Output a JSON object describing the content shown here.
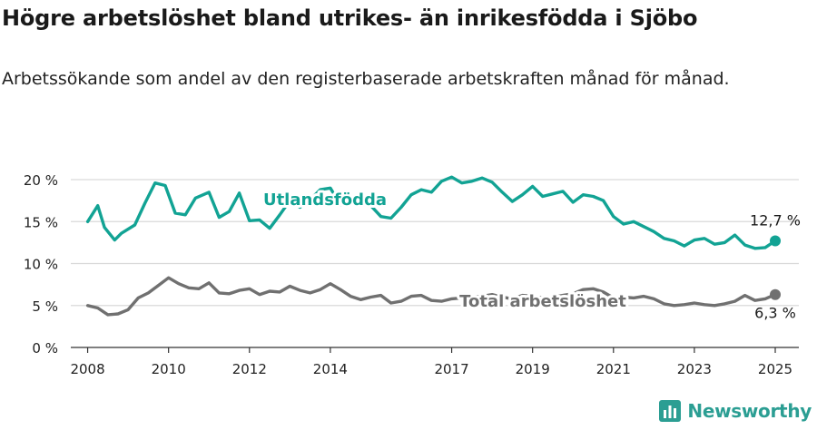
{
  "title": "Högre arbetslöshet bland utrikes- än inrikesfödda i Sjöbo",
  "subtitle": "Arbetssökande som andel av den registerbaserade arbetskraften månad för månad.",
  "brand": "Newsworthy",
  "colors": {
    "foreign": "#12a394",
    "total": "#707070",
    "grid": "#d9d9d9",
    "axis": "#333333"
  },
  "chart_data": {
    "type": "line",
    "x_ticks": [
      "2008",
      "2010",
      "2012",
      "2014",
      "2017",
      "2019",
      "2021",
      "2023",
      "2025"
    ],
    "y_ticks": [
      "0 %",
      "5 %",
      "10 %",
      "15 %",
      "20 %"
    ],
    "ylim": [
      0,
      20
    ],
    "xlim": [
      "2007-08",
      "2025-08"
    ],
    "end_labels": {
      "foreign": "12,7 %",
      "total": "6,3 %"
    },
    "series": [
      {
        "name": "Utlandsfödda",
        "x": [
          "2008-01",
          "2008-04",
          "2008-06",
          "2008-09",
          "2008-11",
          "2009-03",
          "2009-06",
          "2009-09",
          "2009-12",
          "2010-03",
          "2010-06",
          "2010-09",
          "2011-01",
          "2011-04",
          "2011-07",
          "2011-10",
          "2012-01",
          "2012-04",
          "2012-07",
          "2012-10",
          "2013-01",
          "2013-04",
          "2013-07",
          "2013-10",
          "2014-01",
          "2014-04",
          "2014-07",
          "2014-10",
          "2015-01",
          "2015-04",
          "2015-07",
          "2015-10",
          "2016-01",
          "2016-04",
          "2016-07",
          "2016-10",
          "2017-01",
          "2017-04",
          "2017-07",
          "2017-10",
          "2018-01",
          "2018-04",
          "2018-07",
          "2018-10",
          "2019-01",
          "2019-04",
          "2019-07",
          "2019-10",
          "2020-01",
          "2020-04",
          "2020-07",
          "2020-10",
          "2021-01",
          "2021-04",
          "2021-07",
          "2021-10",
          "2022-01",
          "2022-04",
          "2022-07",
          "2022-10",
          "2023-01",
          "2023-04",
          "2023-07",
          "2023-10",
          "2024-01",
          "2024-04",
          "2024-07",
          "2024-10",
          "2025-01"
        ],
        "values": [
          15.0,
          16.9,
          14.3,
          12.8,
          13.6,
          14.6,
          17.2,
          19.6,
          19.3,
          16.0,
          15.8,
          17.8,
          18.5,
          15.5,
          16.2,
          18.4,
          15.1,
          15.2,
          14.2,
          15.8,
          17.5,
          16.7,
          17.6,
          18.8,
          19.0,
          17.0,
          17.4,
          17.0,
          16.9,
          15.6,
          15.4,
          16.7,
          18.2,
          18.8,
          18.5,
          19.8,
          20.3,
          19.6,
          19.8,
          20.2,
          19.7,
          18.5,
          17.4,
          18.2,
          19.2,
          18.0,
          18.3,
          18.6,
          17.3,
          18.2,
          18.0,
          17.5,
          15.6,
          14.7,
          15.0,
          14.4,
          13.8,
          13.0,
          12.7,
          12.1,
          12.8,
          13.0,
          12.3,
          12.5,
          13.4,
          12.2,
          11.8,
          11.9,
          12.7
        ]
      },
      {
        "name": "Total arbetslöshet",
        "x": [
          "2008-01",
          "2008-04",
          "2008-07",
          "2008-10",
          "2009-01",
          "2009-04",
          "2009-07",
          "2009-10",
          "2010-01",
          "2010-04",
          "2010-07",
          "2010-10",
          "2011-01",
          "2011-04",
          "2011-07",
          "2011-10",
          "2012-01",
          "2012-04",
          "2012-07",
          "2012-10",
          "2013-01",
          "2013-04",
          "2013-07",
          "2013-10",
          "2014-01",
          "2014-04",
          "2014-07",
          "2014-10",
          "2015-01",
          "2015-04",
          "2015-07",
          "2015-10",
          "2016-01",
          "2016-04",
          "2016-07",
          "2016-10",
          "2017-01",
          "2017-04",
          "2017-07",
          "2017-10",
          "2018-01",
          "2018-04",
          "2018-07",
          "2018-10",
          "2019-01",
          "2019-04",
          "2019-07",
          "2019-10",
          "2020-01",
          "2020-04",
          "2020-07",
          "2020-10",
          "2021-01",
          "2021-04",
          "2021-07",
          "2021-10",
          "2022-01",
          "2022-04",
          "2022-07",
          "2022-10",
          "2023-01",
          "2023-04",
          "2023-07",
          "2023-10",
          "2024-01",
          "2024-04",
          "2024-07",
          "2024-10",
          "2025-01"
        ],
        "values": [
          5.0,
          4.7,
          3.9,
          4.0,
          4.5,
          5.9,
          6.5,
          7.4,
          8.3,
          7.6,
          7.1,
          7.0,
          7.7,
          6.5,
          6.4,
          6.8,
          7.0,
          6.3,
          6.7,
          6.6,
          7.3,
          6.8,
          6.5,
          6.9,
          7.6,
          6.9,
          6.1,
          5.7,
          6.0,
          6.2,
          5.3,
          5.5,
          6.1,
          6.2,
          5.6,
          5.5,
          5.8,
          5.9,
          6.0,
          6.1,
          6.3,
          6.0,
          5.8,
          6.2,
          6.1,
          5.9,
          6.0,
          6.2,
          6.4,
          6.9,
          7.0,
          6.6,
          5.9,
          6.0,
          5.9,
          6.1,
          5.8,
          5.2,
          5.0,
          5.1,
          5.3,
          5.1,
          5.0,
          5.2,
          5.5,
          6.2,
          5.6,
          5.8,
          6.3
        ]
      }
    ],
    "series_labels": [
      "Utlandsfödda",
      "Total arbetslöshet"
    ]
  }
}
